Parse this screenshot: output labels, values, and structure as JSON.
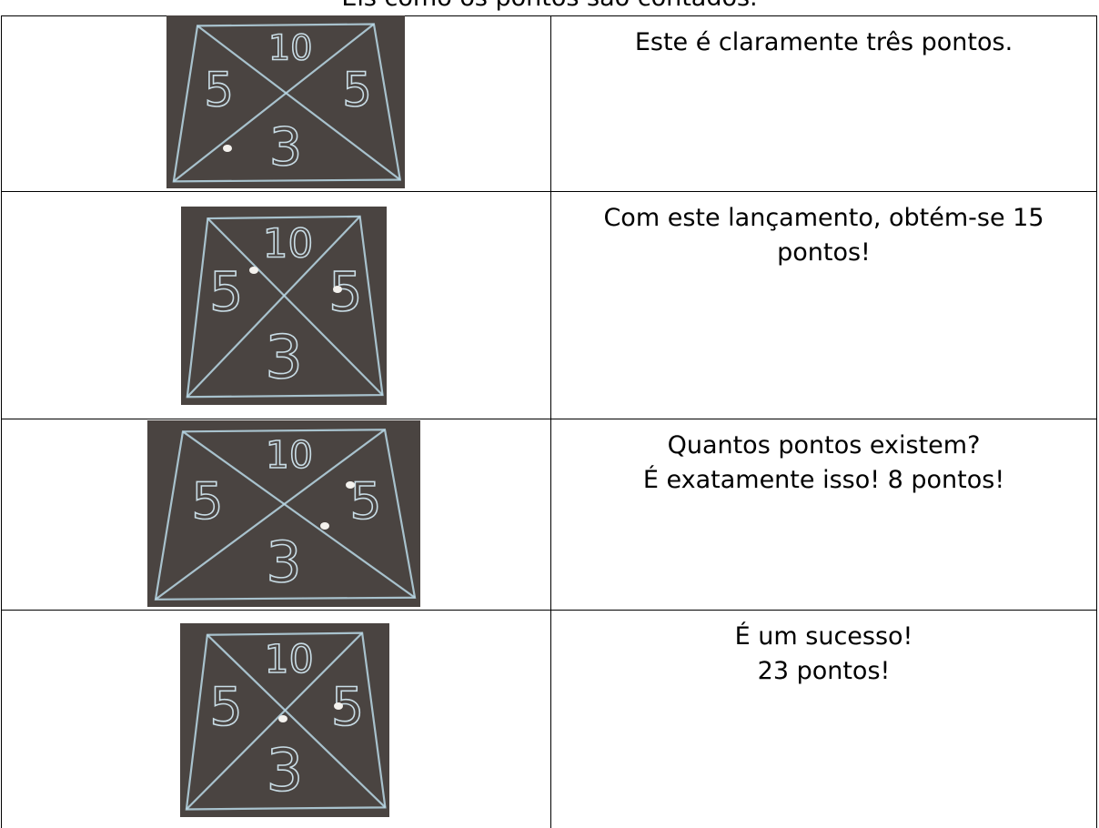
{
  "title": "Eis como os pontos são contados.",
  "board_labels": [
    "10",
    "5",
    "5",
    "3"
  ],
  "table": {
    "rows": [
      {
        "lines": [
          "Este é claramente três pontos."
        ]
      },
      {
        "lines": [
          "Com este lançamento, obtém-se 15",
          "pontos!"
        ]
      },
      {
        "lines": [
          "Quantos pontos existem?",
          "É exatamente isso! 8 pontos!"
        ]
      },
      {
        "lines": [
          "É um sucesso!",
          "23 pontos!"
        ]
      }
    ]
  }
}
